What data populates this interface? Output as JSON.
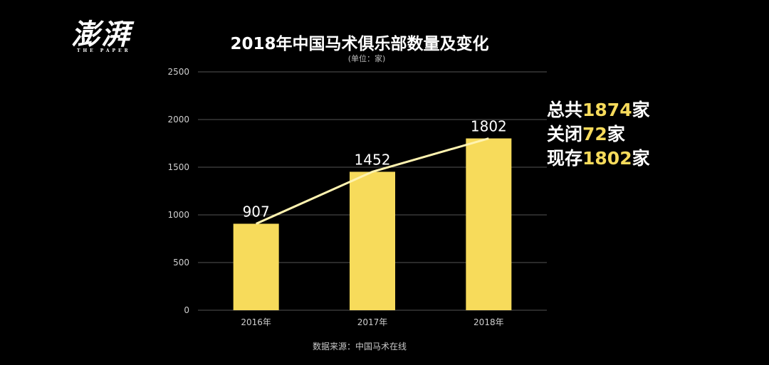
{
  "logo": {
    "chars": "澎湃",
    "subtitle": "THE PAPER"
  },
  "colors": {
    "background": "#000000",
    "bar": "#f7db5b",
    "trend_line": "#fff3b0",
    "highlight_number": "#f7db5b",
    "grid": "#555555"
  },
  "summary": {
    "line1_prefix": "总共",
    "line1_number": "1874",
    "line1_suffix": "家",
    "line2_prefix": "关闭",
    "line2_number": "72",
    "line2_suffix": "家",
    "line3_prefix": "现存",
    "line3_number": "1802",
    "line3_suffix": "家"
  },
  "source": "数据来源：中国马术在线",
  "chart_data": {
    "type": "bar",
    "title": "2018年中国马术俱乐部数量及变化",
    "subtitle": "(单位：家)",
    "categories": [
      "2016年",
      "2017年",
      "2018年"
    ],
    "values": [
      907,
      1452,
      1802
    ],
    "data_labels": [
      "907",
      "1452",
      "1802"
    ],
    "ylim": [
      0,
      2500
    ],
    "yticks": [
      0,
      500,
      1000,
      1500,
      2000,
      2500
    ],
    "ytick_labels": [
      "0",
      "500",
      "1000",
      "1500",
      "2000",
      "2500"
    ],
    "grid": true,
    "trend_line": true,
    "xlabel": "",
    "ylabel": ""
  }
}
